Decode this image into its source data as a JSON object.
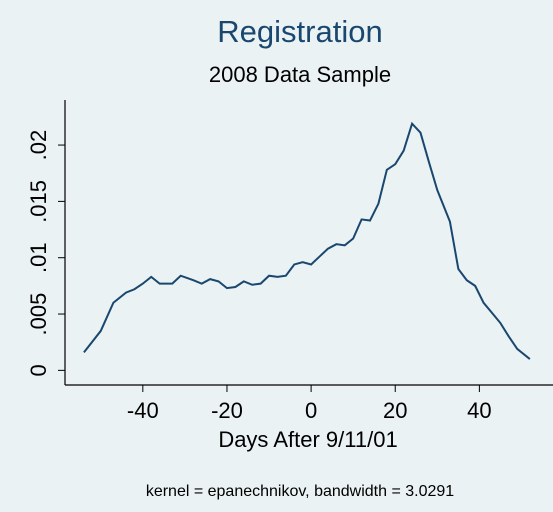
{
  "chart_data": {
    "type": "line",
    "title": "Registration",
    "subtitle": "2008 Data Sample",
    "x_label": "Days After 9/11/01",
    "note": "kernel = epanechnikov, bandwidth = 3.0291",
    "x": [
      -54,
      -50,
      -47,
      -44,
      -42,
      -40,
      -38,
      -36,
      -33,
      -31,
      -28,
      -26,
      -24,
      -22,
      -20,
      -18,
      -16,
      -14,
      -12,
      -10,
      -8,
      -6,
      -4,
      -2,
      0,
      2,
      4,
      6,
      8,
      10,
      12,
      14,
      16,
      18,
      20,
      22,
      24,
      26,
      28,
      30,
      33,
      35,
      37,
      39,
      41,
      43,
      45,
      47,
      49,
      52
    ],
    "series": [
      {
        "color": "#1a476f",
        "values": [
          0.0016,
          0.0035,
          0.006,
          0.0069,
          0.0072,
          0.0077,
          0.0083,
          0.0077,
          0.0077,
          0.0084,
          0.008,
          0.0077,
          0.0081,
          0.0079,
          0.0073,
          0.0074,
          0.0079,
          0.0076,
          0.0077,
          0.0084,
          0.0083,
          0.0084,
          0.0094,
          0.0096,
          0.0094,
          0.0101,
          0.0108,
          0.0112,
          0.0111,
          0.0117,
          0.0134,
          0.0133,
          0.0148,
          0.0178,
          0.0183,
          0.0195,
          0.0219,
          0.0211,
          0.0185,
          0.016,
          0.0132,
          0.009,
          0.008,
          0.0075,
          0.006,
          0.0051,
          0.0042,
          0.003,
          0.0019,
          0.001
        ]
      }
    ],
    "xlim": [
      -58.5,
      57.5
    ],
    "xticks": [
      -40,
      -20,
      0,
      20,
      40
    ],
    "ylim": [
      -0.0013,
      0.024
    ],
    "yticks": [
      0,
      {
        "value": 0.005,
        "label": ".005"
      },
      {
        "value": 0.01,
        "label": ".01"
      },
      {
        "value": 0.015,
        "label": ".015"
      },
      {
        "value": 0.02,
        "label": ".02"
      }
    ],
    "grid": false
  }
}
